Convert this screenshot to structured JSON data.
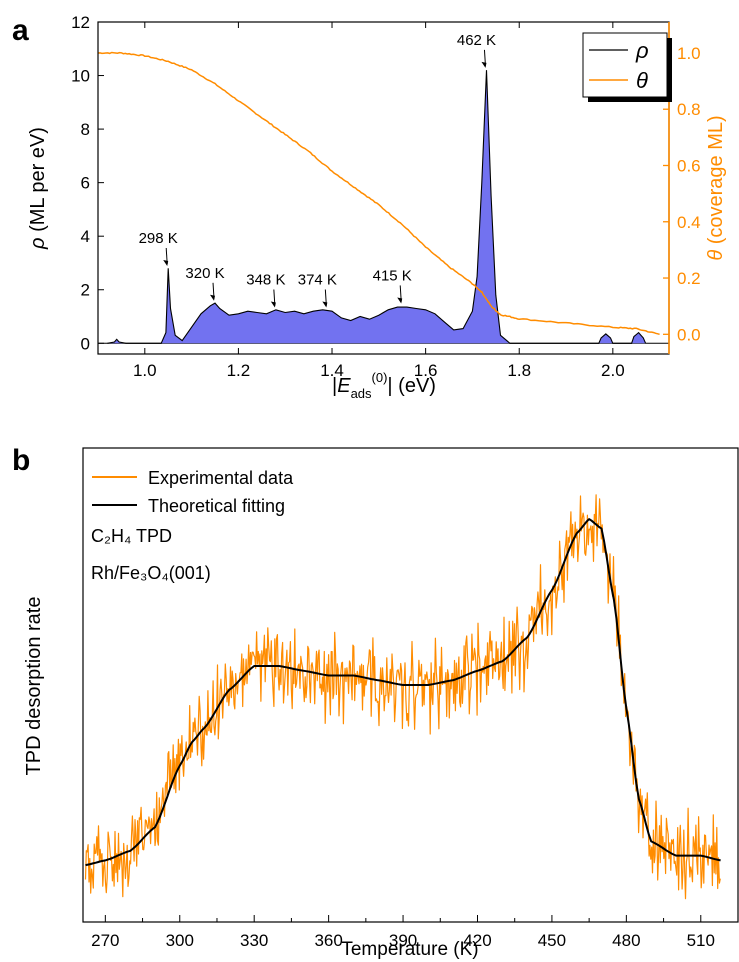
{
  "colors": {
    "rho_fill": "#7272F0",
    "rho_line": "#000000",
    "theta_line": "#FF8C00",
    "experimental": "#FF8C00",
    "fit": "#000000",
    "axis": "#000000",
    "right_axis": "#FF8C00"
  },
  "panel_a": {
    "label": "a",
    "xlabel_prefix": "|",
    "xlabel_main": "E",
    "xlabel_sub": "ads",
    "xlabel_sup": "(0)",
    "xlabel_suffix": "| (eV)",
    "ylabel_symbol": "ρ",
    "ylabel_text": " (ML per eV)",
    "y2label_symbol": "θ",
    "y2label_text": " (coverage ML)",
    "legend": [
      "ρ",
      "θ"
    ]
  },
  "panel_b": {
    "label": "b",
    "xlabel": "Temperature (K)",
    "ylabel": "TPD desorption rate",
    "legend": [
      "Experimental data",
      "Theoretical fitting"
    ],
    "note1": "C₂H₄ TPD",
    "note2": "Rh/Fe₃O₄(001)"
  },
  "chart_data": [
    {
      "type": "area",
      "panel": "a",
      "xlim": [
        0.9,
        2.12
      ],
      "ylim": [
        -0.4,
        12
      ],
      "y2lim": [
        -0.07,
        1.11
      ],
      "xticks": [
        "1.0",
        "1.2",
        "1.4",
        "1.6",
        "1.8",
        "2.0"
      ],
      "yticks": [
        "0",
        "2",
        "4",
        "6",
        "8",
        "10",
        "12"
      ],
      "y2ticks": [
        "0.0",
        "0.2",
        "0.4",
        "0.6",
        "0.8",
        "1.0"
      ],
      "series": [
        {
          "name": "ρ",
          "axis": "left",
          "style": "filled",
          "x": [
            0.92,
            0.935,
            0.94,
            0.945,
            0.96,
            1.035,
            1.045,
            1.05,
            1.055,
            1.065,
            1.08,
            1.1,
            1.12,
            1.14,
            1.15,
            1.16,
            1.18,
            1.2,
            1.22,
            1.24,
            1.26,
            1.28,
            1.3,
            1.32,
            1.34,
            1.36,
            1.38,
            1.4,
            1.42,
            1.44,
            1.46,
            1.48,
            1.5,
            1.52,
            1.54,
            1.56,
            1.58,
            1.6,
            1.62,
            1.64,
            1.66,
            1.68,
            1.7,
            1.71,
            1.72,
            1.73,
            1.74,
            1.75,
            1.76,
            1.78,
            1.97,
            1.975,
            1.985,
            1.995,
            2.0,
            2.04,
            2.045,
            2.055,
            2.065,
            2.07
          ],
          "y": [
            0,
            0.05,
            0.15,
            0.05,
            0,
            0,
            0.4,
            2.8,
            1.3,
            0.3,
            0.1,
            0.6,
            1.1,
            1.4,
            1.5,
            1.3,
            1.05,
            1.1,
            1.2,
            1.15,
            1.1,
            1.25,
            1.15,
            1.2,
            1.1,
            1.2,
            1.25,
            1.2,
            0.95,
            0.85,
            1.0,
            0.9,
            1.05,
            1.25,
            1.35,
            1.35,
            1.3,
            1.25,
            1.1,
            0.8,
            0.5,
            0.55,
            1.2,
            2.5,
            6.0,
            10.2,
            5.5,
            1.8,
            0.3,
            0,
            0,
            0.2,
            0.35,
            0.2,
            0,
            0,
            0.25,
            0.4,
            0.2,
            0
          ]
        },
        {
          "name": "θ",
          "axis": "right",
          "style": "line",
          "x": [
            0.9,
            0.95,
            1.0,
            1.05,
            1.1,
            1.15,
            1.2,
            1.25,
            1.3,
            1.35,
            1.4,
            1.45,
            1.5,
            1.55,
            1.6,
            1.65,
            1.7,
            1.72,
            1.74,
            1.76,
            1.8,
            1.9,
            2.0,
            2.05,
            2.1
          ],
          "y": [
            1.0,
            1.0,
            0.99,
            0.97,
            0.94,
            0.89,
            0.83,
            0.77,
            0.71,
            0.65,
            0.58,
            0.52,
            0.46,
            0.39,
            0.31,
            0.24,
            0.18,
            0.15,
            0.1,
            0.07,
            0.055,
            0.04,
            0.025,
            0.02,
            0.0
          ]
        }
      ],
      "annotations": [
        {
          "text": "298 K",
          "x": 1.05,
          "y": 2.85
        },
        {
          "text": "320 K",
          "x": 1.15,
          "y": 1.55
        },
        {
          "text": "348 K",
          "x": 1.28,
          "y": 1.3
        },
        {
          "text": "374 K",
          "x": 1.39,
          "y": 1.3
        },
        {
          "text": "415 K",
          "x": 1.55,
          "y": 1.45
        },
        {
          "text": "462 K",
          "x": 1.73,
          "y": 10.25
        }
      ]
    },
    {
      "type": "line",
      "panel": "b",
      "xlim": [
        261,
        525
      ],
      "ylim": [
        0,
        1
      ],
      "xticks": [
        "270",
        "300",
        "330",
        "360",
        "390",
        "420",
        "450",
        "480",
        "510"
      ],
      "series": [
        {
          "name": "Theoretical fitting",
          "x": [
            262,
            270,
            280,
            290,
            300,
            305,
            310,
            320,
            330,
            340,
            350,
            360,
            370,
            380,
            390,
            400,
            410,
            420,
            430,
            440,
            450,
            460,
            465,
            470,
            475,
            480,
            485,
            490,
            500,
            510,
            518
          ],
          "y": [
            0.12,
            0.13,
            0.15,
            0.2,
            0.33,
            0.38,
            0.41,
            0.49,
            0.54,
            0.54,
            0.53,
            0.52,
            0.52,
            0.51,
            0.5,
            0.5,
            0.51,
            0.53,
            0.55,
            0.6,
            0.7,
            0.82,
            0.85,
            0.83,
            0.68,
            0.45,
            0.26,
            0.17,
            0.14,
            0.14,
            0.13
          ]
        },
        {
          "name": "Experimental data",
          "style": "noisy",
          "noise_amplitude": 0.05,
          "x": [
            262,
            270,
            280,
            290,
            300,
            305,
            310,
            320,
            330,
            340,
            350,
            360,
            370,
            380,
            390,
            400,
            410,
            420,
            430,
            440,
            450,
            460,
            465,
            470,
            475,
            480,
            485,
            490,
            500,
            510,
            518
          ],
          "y": [
            0.12,
            0.13,
            0.15,
            0.2,
            0.33,
            0.38,
            0.41,
            0.49,
            0.54,
            0.54,
            0.53,
            0.52,
            0.52,
            0.51,
            0.5,
            0.5,
            0.51,
            0.53,
            0.55,
            0.6,
            0.7,
            0.82,
            0.85,
            0.83,
            0.68,
            0.45,
            0.26,
            0.17,
            0.14,
            0.14,
            0.13
          ]
        }
      ]
    }
  ]
}
